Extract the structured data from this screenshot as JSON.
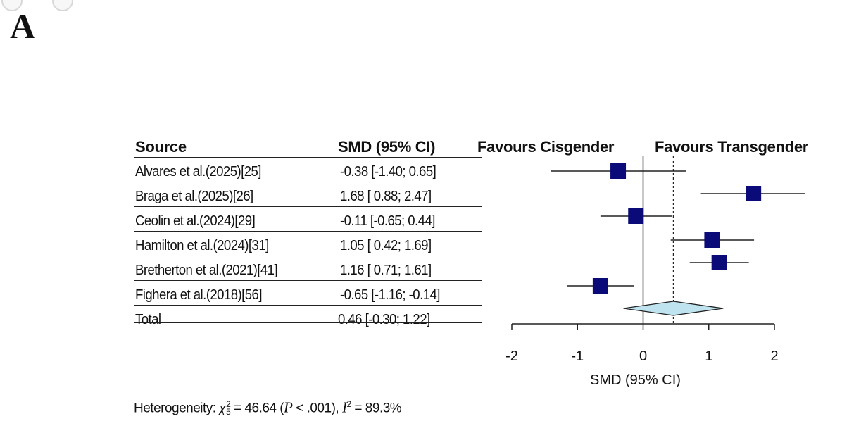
{
  "panel_label": "A",
  "table": {
    "source_header": "Source",
    "smd_header": "SMD (95% CI)",
    "rows": [
      {
        "source": "Alvares et al.(2025)[25]",
        "ci_text": "-0.38 [-1.40;  0.65]"
      },
      {
        "source": "Braga et al.(2025)[26]",
        "ci_text": "1.68 [ 0.88;  2.47]"
      },
      {
        "source": "Ceolin et al.(2024)[29]",
        "ci_text": "-0.11 [-0.65;  0.44]"
      },
      {
        "source": "Hamilton et al.(2024)[31]",
        "ci_text": "1.05 [ 0.42;  1.69]"
      },
      {
        "source": "Bretherton et al.(2021)[41]",
        "ci_text": "1.16 [ 0.71;  1.61]"
      },
      {
        "source": "Fighera et al.(2018)[56]",
        "ci_text": "-0.65 [-1.16; -0.14]"
      }
    ],
    "total": {
      "source": "Total",
      "ci_text": "0.46 [-0.30;  1.22]"
    }
  },
  "heterogeneity": {
    "prefix": "Heterogeneity: ",
    "chi": "χ",
    "chi_sup": "2",
    "chi_sub": "5",
    "chi_value": " = 46.64 (",
    "p_symbol": "P",
    "p_value": " < .001), ",
    "i_symbol": "I",
    "i_sup": "2",
    "i_value": " = 89.3%"
  },
  "colors": {
    "study_square": "#0a0a78",
    "diamond_fill": "#bfe3ef",
    "line": "#222222"
  },
  "chart_data": {
    "type": "forest",
    "direction_labels": {
      "left": "Favours Cisgender",
      "right": "Favours Transgender"
    },
    "xlabel": "SMD (95% CI)",
    "xlim": [
      -2,
      2
    ],
    "xticks": [
      -2,
      -1,
      0,
      1,
      2
    ],
    "null_value": 0,
    "pooled_reference": 0.46,
    "studies": [
      {
        "name": "Alvares et al.(2025)[25]",
        "estimate": -0.38,
        "lower": -1.4,
        "upper": 0.65
      },
      {
        "name": "Braga et al.(2025)[26]",
        "estimate": 1.68,
        "lower": 0.88,
        "upper": 2.47
      },
      {
        "name": "Ceolin et al.(2024)[29]",
        "estimate": -0.11,
        "lower": -0.65,
        "upper": 0.44
      },
      {
        "name": "Hamilton et al.(2024)[31]",
        "estimate": 1.05,
        "lower": 0.42,
        "upper": 1.69
      },
      {
        "name": "Bretherton et al.(2021)[41]",
        "estimate": 1.16,
        "lower": 0.71,
        "upper": 1.61
      },
      {
        "name": "Fighera et al.(2018)[56]",
        "estimate": -0.65,
        "lower": -1.16,
        "upper": -0.14
      }
    ],
    "pooled": {
      "name": "Total",
      "estimate": 0.46,
      "lower": -0.3,
      "upper": 1.22
    }
  }
}
